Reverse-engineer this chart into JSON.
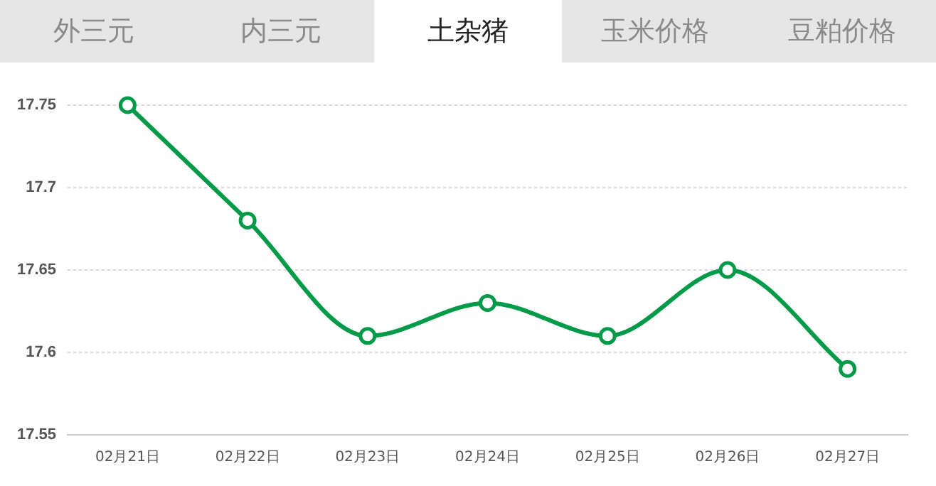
{
  "chart_data": {
    "type": "line",
    "title": "土杂猪",
    "annotations": [
      "外三元",
      "内三元",
      "玉米价格",
      "豆粕价格"
    ],
    "categories": [
      "02月21日",
      "02月22日",
      "02月23日",
      "02月24日",
      "02月25日",
      "02月26日",
      "02月27日"
    ],
    "series": [
      {
        "color": "#009a48",
        "values": [
          17.75,
          17.68,
          17.61,
          17.63,
          17.61,
          17.65,
          17.59
        ]
      }
    ],
    "ylim": [
      17.55,
      17.75
    ],
    "yticks": [
      17.55,
      17.6,
      17.65,
      17.7,
      17.75
    ],
    "grid": "y",
    "legend": false,
    "marker": "circle",
    "line_style": "solid"
  }
}
